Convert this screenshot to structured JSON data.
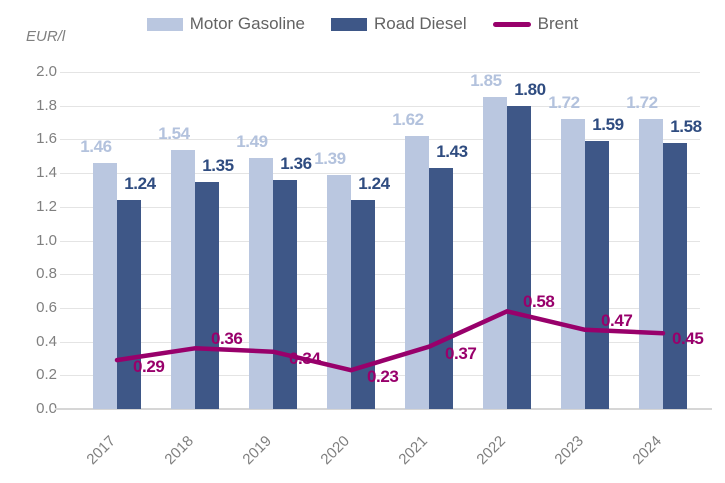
{
  "chart_data": {
    "type": "combo-bar-line",
    "title": "",
    "unit_label": "EUR/l",
    "categories": [
      "2017",
      "2018",
      "2019",
      "2020",
      "2021",
      "2022",
      "2023",
      "2024"
    ],
    "series": [
      {
        "name": "Motor Gasoline",
        "type": "bar",
        "color": "#bac7e0",
        "label_color": "#b3c2dd",
        "values": [
          1.46,
          1.54,
          1.49,
          1.39,
          1.62,
          1.85,
          1.72,
          1.72
        ],
        "value_labels": [
          "1.46",
          "1.54",
          "1.49",
          "1.39",
          "1.62",
          "1.85",
          "1.72",
          "1.72"
        ]
      },
      {
        "name": "Road Diesel",
        "type": "bar",
        "color": "#3e5787",
        "label_color": "#2f4c80",
        "values": [
          1.24,
          1.35,
          1.36,
          1.24,
          1.43,
          1.8,
          1.59,
          1.58
        ],
        "value_labels": [
          "1.24",
          "1.35",
          "1.36",
          "1.24",
          "1.43",
          "1.80",
          "1.59",
          "1.58"
        ]
      },
      {
        "name": "Brent",
        "type": "line",
        "color": "#98006b",
        "label_color": "#98006b",
        "values": [
          0.29,
          0.36,
          0.34,
          0.23,
          0.37,
          0.58,
          0.47,
          0.45
        ],
        "value_labels": [
          "0.29",
          "0.36",
          "0.34",
          "0.23",
          "0.37",
          "0.58",
          "0.47",
          "0.45"
        ],
        "label_sides": [
          "below",
          "above",
          "below",
          "below",
          "below",
          "above",
          "above",
          "right"
        ]
      }
    ],
    "y_axis": {
      "min": 0,
      "max": 2,
      "step": 0.2,
      "tick_labels": [
        "0.0",
        "0.2",
        "0.4",
        "0.6",
        "0.8",
        "1.0",
        "1.2",
        "1.4",
        "1.6",
        "1.8",
        "2.0"
      ]
    },
    "x_axis": {
      "labels_rotation_deg": -45
    },
    "grid": true,
    "legend_position": "top",
    "background": "#ffffff",
    "grid_color": "#e4e4e4",
    "axis_line_color": "#d6d6d6",
    "tick_text_color": "#7f7f7f",
    "legend_text_color": "#636363"
  }
}
